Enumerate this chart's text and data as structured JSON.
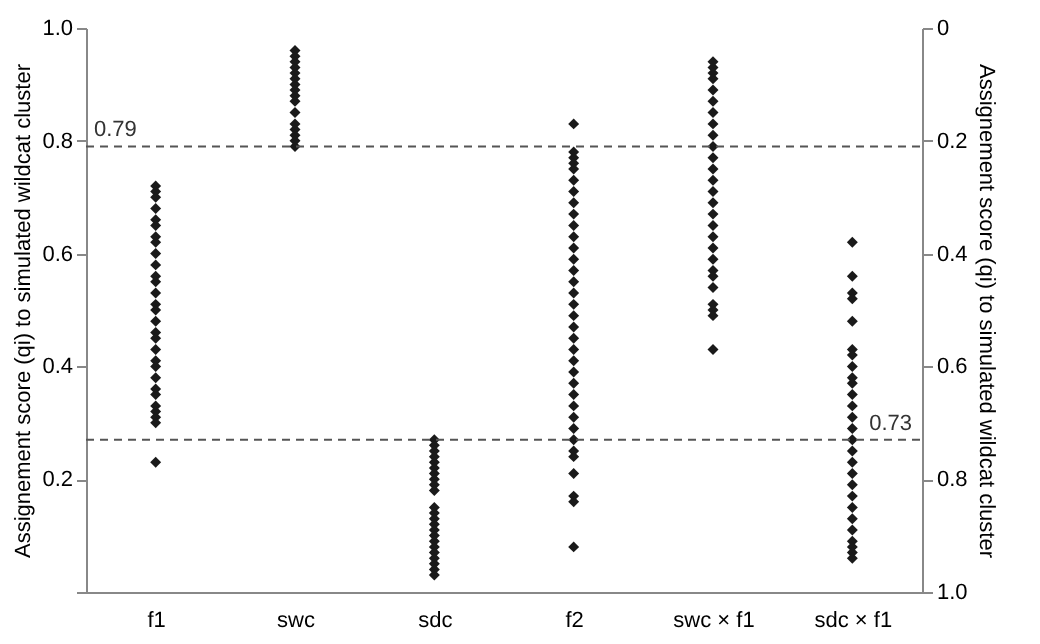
{
  "chart_data": {
    "type": "scatter",
    "categories": [
      "f1",
      "swc",
      "sdc",
      "f2",
      "swc × f1",
      "sdc × f1"
    ],
    "ylabel": "Assignement score (qi) to simulated wildcat cluster",
    "y2label": "Assignement score (qi) to simulated wildcat cluster",
    "ylim": [
      0,
      1
    ],
    "yticks": [
      {
        "value": 0,
        "label": null
      },
      0.2,
      0.4,
      0.6,
      0.8,
      {
        "value": 1,
        "label": "1.0"
      }
    ],
    "y2lim": [
      1,
      0
    ],
    "y2ticks": [
      0,
      0.2,
      0.4,
      0.6,
      0.8,
      {
        "value": 1,
        "label": "1.0"
      }
    ],
    "grid": false,
    "legend": false,
    "marker": "diamond",
    "ref_lines": [
      {
        "axis": "y",
        "value": 0.79,
        "label": "0.79",
        "line_style": "dashed",
        "color": "#555555"
      },
      {
        "axis": "y2",
        "value": 0.73,
        "label": "0.73",
        "line_style": "dashed",
        "color": "#555555"
      }
    ],
    "series": [
      {
        "color": "#1a1a1a",
        "x": [
          "f1",
          "f1",
          "f1",
          "f1",
          "f1",
          "f1",
          "f1",
          "f1",
          "f1",
          "f1",
          "f1",
          "f1",
          "f1",
          "f1",
          "f1",
          "f1",
          "f1",
          "f1",
          "f1",
          "f1",
          "f1",
          "f1",
          "f1",
          "f1",
          "f1",
          "f1",
          "f1",
          "f1",
          "f1"
        ],
        "values": [
          0.72,
          0.71,
          0.7,
          0.68,
          0.66,
          0.65,
          0.63,
          0.62,
          0.6,
          0.58,
          0.56,
          0.55,
          0.53,
          0.51,
          0.5,
          0.48,
          0.46,
          0.45,
          0.43,
          0.41,
          0.4,
          0.38,
          0.36,
          0.35,
          0.33,
          0.32,
          0.31,
          0.3,
          0.23
        ]
      },
      {
        "color": "#1a1a1a",
        "x": [
          "swc",
          "swc",
          "swc",
          "swc",
          "swc",
          "swc",
          "swc",
          "swc",
          "swc",
          "swc",
          "swc",
          "swc",
          "swc",
          "swc",
          "swc",
          "swc"
        ],
        "values": [
          0.96,
          0.95,
          0.94,
          0.93,
          0.92,
          0.91,
          0.9,
          0.89,
          0.88,
          0.87,
          0.85,
          0.83,
          0.82,
          0.81,
          0.8,
          0.79
        ]
      },
      {
        "color": "#1a1a1a",
        "x": [
          "sdc",
          "sdc",
          "sdc",
          "sdc",
          "sdc",
          "sdc",
          "sdc",
          "sdc",
          "sdc",
          "sdc",
          "sdc",
          "sdc",
          "sdc",
          "sdc",
          "sdc",
          "sdc",
          "sdc",
          "sdc",
          "sdc",
          "sdc",
          "sdc",
          "sdc",
          "sdc"
        ],
        "values": [
          0.27,
          0.26,
          0.25,
          0.24,
          0.23,
          0.22,
          0.21,
          0.2,
          0.19,
          0.18,
          0.15,
          0.14,
          0.13,
          0.12,
          0.11,
          0.1,
          0.09,
          0.08,
          0.07,
          0.06,
          0.05,
          0.04,
          0.03
        ]
      },
      {
        "color": "#1a1a1a",
        "x": [
          "f2",
          "f2",
          "f2",
          "f2",
          "f2",
          "f2",
          "f2",
          "f2",
          "f2",
          "f2",
          "f2",
          "f2",
          "f2",
          "f2",
          "f2",
          "f2",
          "f2",
          "f2",
          "f2",
          "f2",
          "f2",
          "f2",
          "f2",
          "f2",
          "f2",
          "f2",
          "f2",
          "f2",
          "f2",
          "f2",
          "f2",
          "f2",
          "f2",
          "f2",
          "f2"
        ],
        "values": [
          0.83,
          0.78,
          0.77,
          0.76,
          0.75,
          0.73,
          0.71,
          0.69,
          0.67,
          0.65,
          0.63,
          0.61,
          0.59,
          0.57,
          0.55,
          0.53,
          0.51,
          0.49,
          0.47,
          0.45,
          0.43,
          0.41,
          0.39,
          0.37,
          0.35,
          0.33,
          0.31,
          0.29,
          0.27,
          0.25,
          0.24,
          0.21,
          0.17,
          0.16,
          0.08
        ]
      },
      {
        "color": "#1a1a1a",
        "x": [
          "swc × f1",
          "swc × f1",
          "swc × f1",
          "swc × f1",
          "swc × f1",
          "swc × f1",
          "swc × f1",
          "swc × f1",
          "swc × f1",
          "swc × f1",
          "swc × f1",
          "swc × f1",
          "swc × f1",
          "swc × f1",
          "swc × f1",
          "swc × f1",
          "swc × f1",
          "swc × f1",
          "swc × f1",
          "swc × f1",
          "swc × f1",
          "swc × f1",
          "swc × f1",
          "swc × f1",
          "swc × f1",
          "swc × f1",
          "swc × f1"
        ],
        "values": [
          0.94,
          0.93,
          0.92,
          0.91,
          0.89,
          0.87,
          0.85,
          0.83,
          0.81,
          0.79,
          0.77,
          0.75,
          0.73,
          0.71,
          0.69,
          0.67,
          0.65,
          0.63,
          0.61,
          0.59,
          0.57,
          0.56,
          0.54,
          0.51,
          0.5,
          0.49,
          0.43
        ]
      },
      {
        "color": "#1a1a1a",
        "x": [
          "sdc × f1",
          "sdc × f1",
          "sdc × f1",
          "sdc × f1",
          "sdc × f1",
          "sdc × f1",
          "sdc × f1",
          "sdc × f1",
          "sdc × f1",
          "sdc × f1",
          "sdc × f1",
          "sdc × f1",
          "sdc × f1",
          "sdc × f1",
          "sdc × f1",
          "sdc × f1",
          "sdc × f1",
          "sdc × f1",
          "sdc × f1",
          "sdc × f1",
          "sdc × f1",
          "sdc × f1",
          "sdc × f1",
          "sdc × f1",
          "sdc × f1",
          "sdc × f1",
          "sdc × f1"
        ],
        "values": [
          0.62,
          0.56,
          0.53,
          0.52,
          0.48,
          0.43,
          0.42,
          0.4,
          0.38,
          0.37,
          0.35,
          0.33,
          0.31,
          0.29,
          0.27,
          0.25,
          0.23,
          0.21,
          0.19,
          0.17,
          0.15,
          0.13,
          0.11,
          0.09,
          0.08,
          0.07,
          0.06
        ]
      }
    ]
  }
}
